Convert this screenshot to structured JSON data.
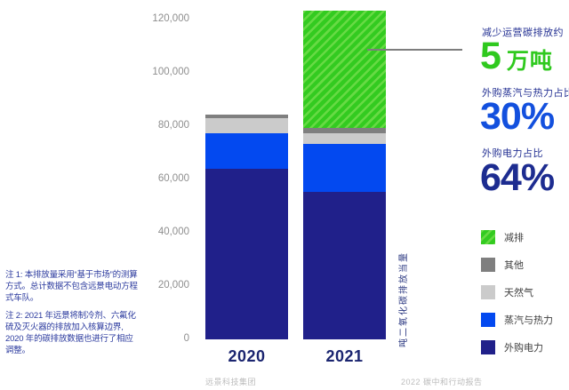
{
  "chart_data": {
    "type": "bar",
    "stacked": true,
    "title": "",
    "categories": [
      "2020",
      "2021"
    ],
    "series": [
      {
        "name": "外购电力",
        "color": "#20208a",
        "hatch": false,
        "values": [
          64000,
          55500
        ]
      },
      {
        "name": "蒸汽与热力",
        "color": "#0349f0",
        "hatch": false,
        "values": [
          13500,
          18000
        ]
      },
      {
        "name": "天然气",
        "color": "#cbcbcb",
        "hatch": false,
        "values": [
          5500,
          4000
        ]
      },
      {
        "name": "其他",
        "color": "#7f7f7f",
        "hatch": false,
        "values": [
          1500,
          2000
        ]
      },
      {
        "name": "减排",
        "color": "#33cb20",
        "hatch": true,
        "values": [
          0,
          44000
        ]
      }
    ],
    "xlabel": "",
    "ylabel": "吨二氧化碳排放当量",
    "ylim": [
      0,
      120000
    ],
    "yticks": [
      0,
      20000,
      40000,
      60000,
      80000,
      100000,
      120000
    ],
    "ytick_labels": [
      "0",
      "20,000",
      "40,000",
      "60,000",
      "80,000",
      "100,000",
      "120,000"
    ],
    "grid": false,
    "legend_position": "right"
  },
  "legend": {
    "items": [
      {
        "label": "减排",
        "color": "#33cb20",
        "hatch": true
      },
      {
        "label": "其他",
        "color": "#7f7f7f",
        "hatch": false
      },
      {
        "label": "天然气",
        "color": "#cbcbcb",
        "hatch": false
      },
      {
        "label": "蒸汽与热力",
        "color": "#0349f0",
        "hatch": false
      },
      {
        "label": "外购电力",
        "color": "#20208a",
        "hatch": false
      }
    ]
  },
  "stats": {
    "reduction": {
      "label": "减少运营碳排放约",
      "value": "5",
      "unit": "万吨",
      "color": "#2fc91e"
    },
    "steam": {
      "label": "外购蒸汽与热力占比",
      "value": "30%",
      "color": "#1350de"
    },
    "electricity": {
      "label": "外购电力占比",
      "value": "64%",
      "color": "#1d2c90"
    }
  },
  "notes": {
    "note1": "注 1: 本排放量采用“基于市场”的测算方式。总计数据不包含远景电动方程式车队。",
    "note2": "注 2: 2021 年远景将制冷剂、六氟化硫及灭火器的排放加入核算边界, 2020 年的碳排放数据也进行了相应调整。"
  },
  "footer": {
    "left": "远景科技集团",
    "right": "2022 碳中和行动报告"
  }
}
